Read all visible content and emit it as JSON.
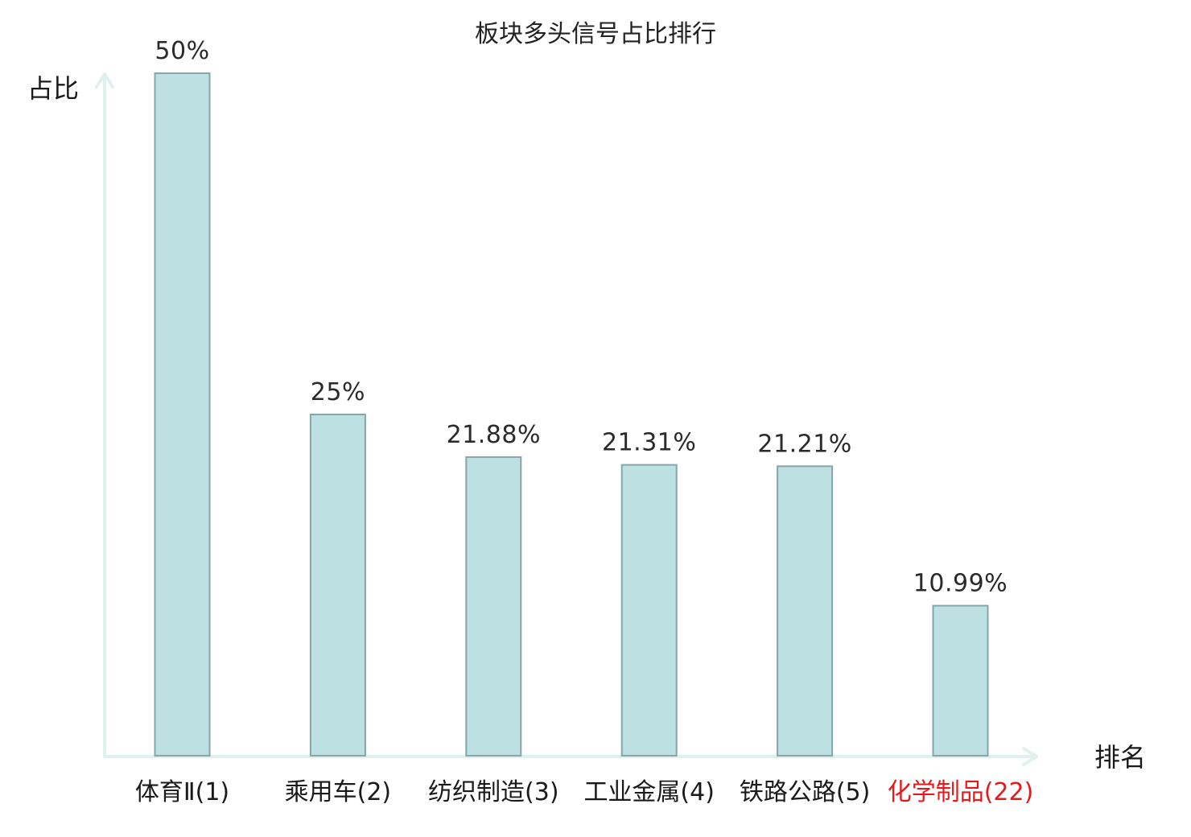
{
  "chart_data": {
    "type": "bar",
    "title": "板块多头信号占比排行",
    "xlabel": "排名",
    "ylabel": "占比",
    "categories": [
      {
        "name": "体育Ⅱ",
        "rank": "(1)",
        "highlight": false
      },
      {
        "name": "乘用车",
        "rank": "(2)",
        "highlight": false
      },
      {
        "name": "纺织制造",
        "rank": "(3)",
        "highlight": false
      },
      {
        "name": "工业金属",
        "rank": "(4)",
        "highlight": false
      },
      {
        "name": "铁路公路",
        "rank": "(5)",
        "highlight": false
      },
      {
        "name": "化学制品",
        "rank": "(22)",
        "highlight": true
      }
    ],
    "values": [
      50,
      25,
      21.88,
      21.31,
      21.21,
      10.99
    ],
    "value_labels": [
      "50%",
      "25%",
      "21.88%",
      "21.31%",
      "21.21%",
      "10.99%"
    ],
    "ylim": [
      0,
      50
    ],
    "grid": false,
    "legend": "none",
    "colors": {
      "bar_fill": "#bde0e3",
      "bar_stroke": "#86a6a8",
      "axis": "#dff1ee",
      "highlight_text": "#e41a1c",
      "text": "#1a1a1a"
    }
  }
}
